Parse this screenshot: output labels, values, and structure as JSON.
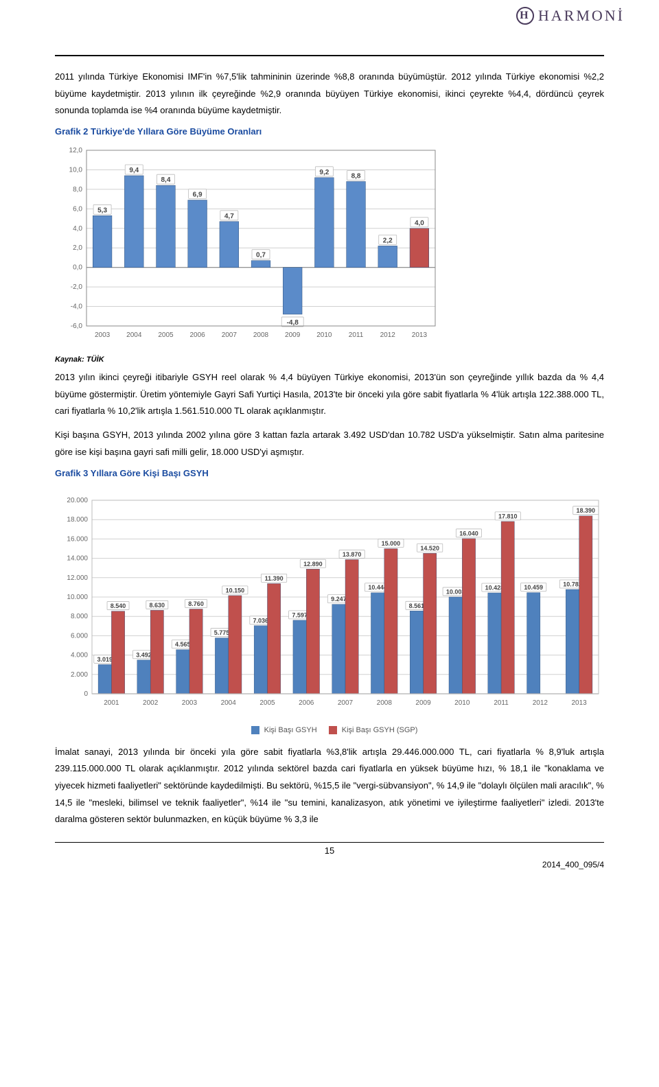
{
  "logo_text": "HARMONİ",
  "paragraphs": {
    "p1": "2011 yılında Türkiye Ekonomisi IMF'in %7,5'lik tahmininin üzerinde %8,8 oranında büyümüştür. 2012 yılında Türkiye ekonomisi %2,2 büyüme kaydetmiştir. 2013 yılının ilk çeyreğinde %2,9 oranında büyüyen Türkiye ekonomisi, ikinci çeyrekte %4,4, dördüncü çeyrek sonunda toplamda ise %4 oranında büyüme kaydetmiştir.",
    "p2": "2013 yılın ikinci çeyreği itibariyle GSYH reel olarak % 4,4 büyüyen Türkiye ekonomisi, 2013'ün son çeyreğinde yıllık bazda da % 4,4 büyüme göstermiştir. Üretim yöntemiyle Gayri Safi Yurtiçi Hasıla, 2013'te bir önceki yıla göre sabit fiyatlarla % 4'lük artışla 122.388.000 TL, cari fiyatlarla % 10,2'lik artışla 1.561.510.000 TL olarak açıklanmıştır.",
    "p3": "Kişi başına GSYH, 2013 yılında 2002 yılına göre 3 kattan fazla artarak 3.492 USD'dan 10.782 USD'a yükselmiştir. Satın alma paritesine göre ise kişi başına gayri safi milli gelir, 18.000 USD'yi aşmıştır.",
    "p4": "İmalat sanayi, 2013 yılında bir önceki yıla göre sabit fiyatlarla %3,8'lik artışla 29.446.000.000 TL, cari fiyatlarla % 8,9'luk artışla 239.115.000.000 TL olarak açıklanmıştır. 2012 yılında sektörel bazda cari fiyatlarla en yüksek büyüme hızı, % 18,1 ile \"konaklama ve yiyecek hizmeti faaliyetleri\" sektöründe kaydedilmişti. Bu sektörü,  %15,5 ile \"vergi-sübvansiyon\", % 14,9 ile \"dolaylı ölçülen mali aracılık\", % 14,5 ile \"mesleki, bilimsel ve teknik faaliyetler\", %14 ile \"su temini, kanalizasyon, atık yönetimi ve iyileştirme faaliyetleri\" izledi. 2013'te daralma gösteren sektör bulunmazken, en küçük büyüme % 3,3 ile"
  },
  "chart1": {
    "title": "Grafik 2 Türkiye'de Yıllara Göre Büyüme Oranları",
    "source_label": "Kaynak: TÜİK",
    "type": "bar",
    "categories": [
      "2003",
      "2004",
      "2005",
      "2006",
      "2007",
      "2008",
      "2009",
      "2010",
      "2011",
      "2012",
      "2013"
    ],
    "values": [
      5.3,
      9.4,
      8.4,
      6.9,
      4.7,
      0.7,
      -4.8,
      9.2,
      8.8,
      2.2,
      4.0
    ],
    "value_labels": [
      "5,3",
      "9,4",
      "8,4",
      "6,9",
      "4,7",
      "0,7",
      "-4,8",
      "9,2",
      "8,8",
      "2,2",
      "4,0"
    ],
    "bar_color": "#5b8bc9",
    "highlight_index": 10,
    "highlight_color": "#c0504d",
    "ylim": [
      -6,
      12
    ],
    "ytick_step": 2,
    "ytick_labels": [
      "-6,0",
      "-4,0",
      "-2,0",
      "0,0",
      "2,0",
      "4,0",
      "6,0",
      "8,0",
      "10,0",
      "12,0"
    ],
    "grid_color": "#d0d0d0",
    "background_color": "#ffffff"
  },
  "chart2": {
    "title": "Grafik 3 Yıllara Göre Kişi Başı GSYH",
    "type": "grouped-bar",
    "categories": [
      "2001",
      "2002",
      "2003",
      "2004",
      "2005",
      "2006",
      "2007",
      "2008",
      "2009",
      "2010",
      "2011",
      "2012",
      "2013"
    ],
    "series": [
      {
        "name": "Kişi Başı GSYH",
        "color": "#4f81bd",
        "values": [
          3019,
          3492,
          4565,
          5775,
          7036,
          7597,
          9247,
          10444,
          8561,
          10003,
          10428,
          10459,
          10782
        ],
        "labels": [
          "3.019",
          "3.492",
          "4.565",
          "5.775",
          "7.036",
          "7.597",
          "9.247",
          "10.444",
          "8.561",
          "10.003",
          "10.428",
          "10.459",
          "10.782"
        ]
      },
      {
        "name": "Kişi Başı GSYH (SGP)",
        "color": "#c0504d",
        "values": [
          8540,
          8630,
          8760,
          10150,
          11390,
          12890,
          13870,
          15000,
          14520,
          16040,
          17810,
          null,
          18390
        ],
        "labels": [
          "8.540",
          "8.630",
          "8.760",
          "10.150",
          "11.390",
          "12.890",
          "13.870",
          "15.000",
          "14.520",
          "16.040",
          "17.810",
          "",
          "18.390"
        ]
      }
    ],
    "ylim": [
      0,
      20000
    ],
    "ytick_step": 2000,
    "ytick_labels": [
      "0",
      "2.000",
      "4.000",
      "6.000",
      "8.000",
      "10.000",
      "12.000",
      "14.000",
      "16.000",
      "18.000",
      "20.000"
    ],
    "grid_color": "#d0d0d0",
    "background_color": "#ffffff"
  },
  "page_number": "15",
  "footer_code": "2014_400_095/4"
}
